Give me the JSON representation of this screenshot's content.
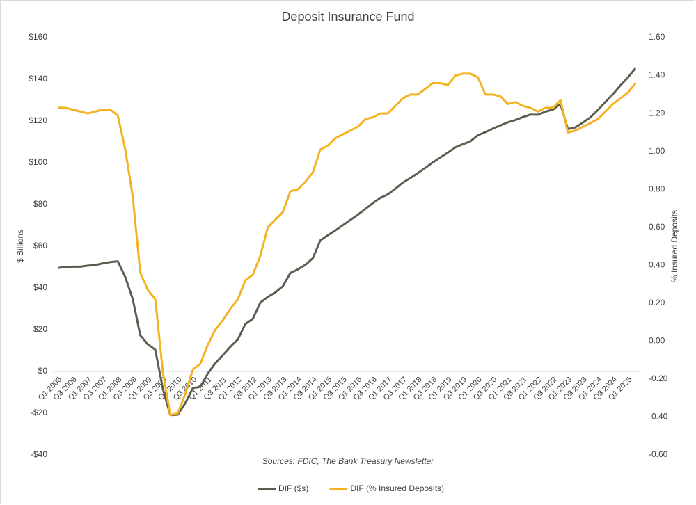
{
  "chart_data": {
    "type": "line",
    "title": "Deposit Insurance Fund",
    "ylabel": "$ Billions",
    "y2label": "% Insured Deposits",
    "annotation": "Sources: FDIC, The Bank Treasury Newsletter",
    "categories": [
      "Q1 2006",
      null,
      "Q3 2006",
      null,
      "Q1 2007",
      null,
      "Q3 2007",
      null,
      "Q1 2008",
      null,
      "Q3 2008",
      null,
      "Q1 2009",
      null,
      "Q3 2009",
      null,
      "Q1 2010",
      null,
      "Q3 2010",
      null,
      "Q1 2011",
      null,
      "Q3 2011",
      null,
      "Q1 2012",
      null,
      "Q3 2012",
      null,
      "Q1 2013",
      null,
      "Q3 2013",
      null,
      "Q1 2014",
      null,
      "Q3 2014",
      null,
      "Q1 2015",
      null,
      "Q3 2015",
      null,
      "Q1 2016",
      null,
      "Q3 2016",
      null,
      "Q1 2017",
      null,
      "Q3 2017",
      null,
      "Q1 2018",
      null,
      "Q3 2018",
      null,
      "Q1 2019",
      null,
      "Q3 2019",
      null,
      "Q1 2020",
      null,
      "Q3 2020",
      null,
      "Q1 2021",
      null,
      "Q3 2021",
      null,
      "Q1 2022",
      null,
      "Q3 2022",
      null,
      "Q1 2023",
      null,
      "Q3 2023",
      null,
      "Q1 2024",
      null,
      "Q3 2024",
      null,
      "Q1 2025",
      null
    ],
    "series": [
      {
        "name": "DIF ($s)",
        "color": "#5b5e4f",
        "values": [
          49.6,
          49.99,
          50.2,
          50.2,
          50.7,
          51.0,
          51.8,
          52.4,
          52.8,
          45.2,
          34.6,
          17.3,
          13.0,
          10.4,
          -8.2,
          -20.9,
          -20.7,
          -15.2,
          -8.0,
          -7.4,
          -1.0,
          3.9,
          7.8,
          11.8,
          15.3,
          22.7,
          25.2,
          33.0,
          35.7,
          37.9,
          40.8,
          47.2,
          48.9,
          51.1,
          54.3,
          62.8,
          65.3,
          67.6,
          70.1,
          72.6,
          75.1,
          77.9,
          80.7,
          83.2,
          84.9,
          87.6,
          90.5,
          92.7,
          95.1,
          97.6,
          100.2,
          102.6,
          104.9,
          107.4,
          108.9,
          110.3,
          113.2,
          114.7,
          116.4,
          117.9,
          119.4,
          120.5,
          121.9,
          123.1,
          123.0,
          124.5,
          125.5,
          128.2,
          116.1,
          117.0,
          119.3,
          121.8,
          125.3,
          129.2,
          132.9,
          137.1,
          140.9,
          145.3
        ]
      },
      {
        "name": "DIF (% Insured Deposits)",
        "color": "#f4b223",
        "axis": "y2",
        "values": [
          1.23,
          1.23,
          1.22,
          1.21,
          1.2,
          1.21,
          1.22,
          1.22,
          1.19,
          1.01,
          0.76,
          0.36,
          0.27,
          0.22,
          -0.16,
          -0.39,
          -0.38,
          -0.28,
          -0.15,
          -0.12,
          -0.02,
          0.06,
          0.11,
          0.17,
          0.22,
          0.32,
          0.35,
          0.45,
          0.6,
          0.64,
          0.68,
          0.79,
          0.8,
          0.84,
          0.89,
          1.01,
          1.03,
          1.07,
          1.09,
          1.11,
          1.13,
          1.17,
          1.18,
          1.2,
          1.2,
          1.24,
          1.28,
          1.3,
          1.3,
          1.33,
          1.36,
          1.36,
          1.35,
          1.4,
          1.41,
          1.41,
          1.39,
          1.3,
          1.3,
          1.29,
          1.25,
          1.26,
          1.24,
          1.23,
          1.21,
          1.23,
          1.23,
          1.27,
          1.1,
          1.11,
          1.13,
          1.15,
          1.17,
          1.21,
          1.25,
          1.28,
          1.31,
          1.36
        ]
      }
    ],
    "ylim": [
      -40,
      160
    ],
    "yticks": [
      {
        "value": -40,
        "label": "-$40"
      },
      {
        "value": -20,
        "label": "-$20"
      },
      {
        "value": 0,
        "label": "$0"
      },
      {
        "value": 20,
        "label": "$20"
      },
      {
        "value": 40,
        "label": "$40"
      },
      {
        "value": 60,
        "label": "$60"
      },
      {
        "value": 80,
        "label": "$80"
      },
      {
        "value": 100,
        "label": "$100"
      },
      {
        "value": 120,
        "label": "$120"
      },
      {
        "value": 140,
        "label": "$140"
      },
      {
        "value": 160,
        "label": "$160"
      }
    ],
    "y2lim": [
      -0.6,
      1.6
    ],
    "y2ticks": [
      {
        "value": -0.6,
        "label": "-0.60"
      },
      {
        "value": -0.4,
        "label": "-0.40"
      },
      {
        "value": -0.2,
        "label": "-0.20"
      },
      {
        "value": 0,
        "label": "0.00"
      },
      {
        "value": 0.2,
        "label": "0.20"
      },
      {
        "value": 0.4,
        "label": "0.40"
      },
      {
        "value": 0.6,
        "label": "0.60"
      },
      {
        "value": 0.8,
        "label": "0.80"
      },
      {
        "value": 1.0,
        "label": "1.00"
      },
      {
        "value": 1.2,
        "label": "1.20"
      },
      {
        "value": 1.4,
        "label": "1.40"
      },
      {
        "value": 1.6,
        "label": "1.60"
      }
    ],
    "grid": false,
    "legend": "bottom"
  }
}
